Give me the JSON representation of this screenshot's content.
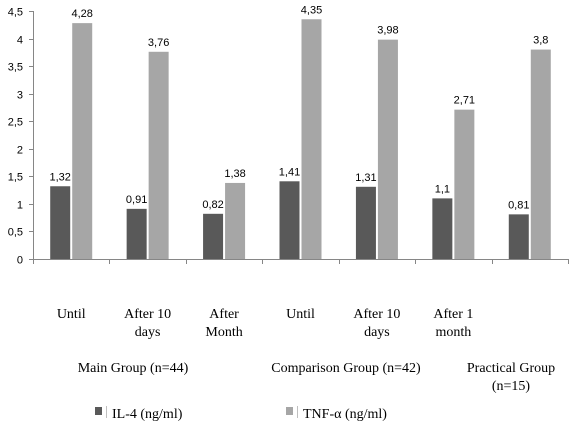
{
  "chart_data": {
    "type": "bar",
    "categories": [
      [
        "Until"
      ],
      [
        "After 10",
        "days"
      ],
      [
        "After",
        "Month"
      ],
      [
        "Until"
      ],
      [
        "After 10",
        "days"
      ],
      [
        "After 1",
        "month"
      ],
      [
        ""
      ]
    ],
    "groups": [
      {
        "label": [
          "Main Group (n=44)"
        ],
        "span": [
          0,
          2
        ]
      },
      {
        "label": [
          "Comparison Group (n=42)"
        ],
        "span": [
          3,
          5
        ]
      },
      {
        "label": [
          "Practical Group",
          "(n=15)"
        ],
        "span": [
          6,
          6
        ]
      }
    ],
    "series": [
      {
        "name": "IL-4 (ng/ml)",
        "color": "#595959",
        "values": [
          1.32,
          0.91,
          0.82,
          1.41,
          1.31,
          1.1,
          0.81
        ],
        "value_labels": [
          "1,32",
          "0,91",
          "0,82",
          "1,41",
          "1,31",
          "1,1",
          "0,81"
        ]
      },
      {
        "name": "TNF-α (ng/ml)",
        "color": "#a6a6a6",
        "values": [
          4.28,
          3.76,
          1.38,
          4.35,
          3.98,
          2.71,
          3.8
        ],
        "value_labels": [
          "4,28",
          "3,76",
          "1,38",
          "4,35",
          "3,98",
          "2,71",
          "3,8"
        ]
      }
    ],
    "ylim": [
      0,
      4.5
    ],
    "yticks": [
      0,
      0.5,
      1,
      1.5,
      2,
      2.5,
      3,
      3.5,
      4,
      4.5
    ],
    "ytick_labels": [
      "0",
      "0,5",
      "1",
      "1,5",
      "2",
      "2,5",
      "3",
      "3,5",
      "4",
      "4,5"
    ],
    "grid": false,
    "legend_position": "bottom"
  }
}
